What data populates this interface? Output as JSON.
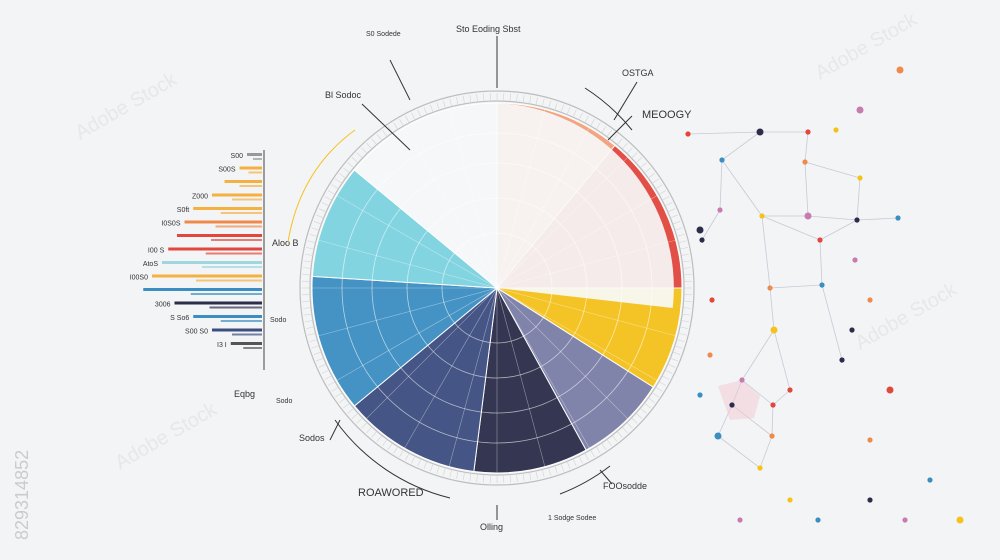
{
  "chart_data": {
    "type": "pie",
    "title": "",
    "labels": {
      "top_small": "S0 Sodede",
      "top_center": "Sto Eoding Sbst",
      "upper_left": "Bl Sodoc",
      "right_1": "OSTGA",
      "right_2": "MEOOGY",
      "left_mid": "Aloo B",
      "left_low": "Sodo",
      "left_bottom": "Eqbg",
      "bottom_mid_left": "Sodos",
      "bottom_left_small": "Sodo",
      "bottom_main": "ROAWORED",
      "bottom_center": "Olling",
      "bottom_right_1": "FOOsodde",
      "bottom_right_2": "1 Sodge Sodee",
      "watermark_id": "829314852",
      "watermark_text": "Adobe Stock"
    },
    "slices": [
      {
        "value": 11,
        "color": "#f3a07a"
      },
      {
        "value": 14,
        "color": "#e2473d"
      },
      {
        "value": 9,
        "color": "#f5c21c"
      },
      {
        "value": 8,
        "color": "#7b7fa6"
      },
      {
        "value": 10,
        "color": "#2b2d4a"
      },
      {
        "value": 12,
        "color": "#3c4d80"
      },
      {
        "value": 12,
        "color": "#3b8ec2"
      },
      {
        "value": 10,
        "color": "#7ed3e0"
      },
      {
        "value": 14,
        "color": "#f7f8fa"
      }
    ],
    "bars": [
      {
        "label": "S00",
        "value": 0.12,
        "color": "#999999"
      },
      {
        "label": "S00S",
        "value": 0.18,
        "color": "#f4b040"
      },
      {
        "label": "",
        "value": 0.3,
        "color": "#f4b040"
      },
      {
        "label": "Z000",
        "value": 0.4,
        "color": "#f4b040"
      },
      {
        "label": "S0ft",
        "value": 0.55,
        "color": "#f4b040"
      },
      {
        "label": "I0S0S",
        "value": 0.62,
        "color": "#f08a4b"
      },
      {
        "label": "",
        "value": 0.68,
        "color": "#e2473d"
      },
      {
        "label": "I00 S",
        "value": 0.75,
        "color": "#e2473d"
      },
      {
        "label": "AtoS",
        "value": 0.8,
        "color": "#9fd6e0"
      },
      {
        "label": "I00S0",
        "value": 0.88,
        "color": "#f4b040"
      },
      {
        "label": "",
        "value": 0.95,
        "color": "#3b8ec2"
      },
      {
        "label": "3006",
        "value": 0.7,
        "color": "#2b2d4a"
      },
      {
        "label": "S So6",
        "value": 0.55,
        "color": "#3b8ec2"
      },
      {
        "label": "S00 S0",
        "value": 0.4,
        "color": "#3c4d80"
      },
      {
        "label": "I3 I",
        "value": 0.25,
        "color": "#555555"
      }
    ]
  },
  "colors": {
    "accent_orange": "#f08a4b",
    "accent_red": "#e2473d",
    "accent_yellow": "#f5c21c",
    "accent_blue": "#3b8ec2",
    "accent_navy": "#2b2d4a"
  },
  "network_palette": [
    "#2b2d4a",
    "#e2473d",
    "#f08a4b",
    "#3b8ec2",
    "#f5c21c",
    "#c77bb0"
  ]
}
